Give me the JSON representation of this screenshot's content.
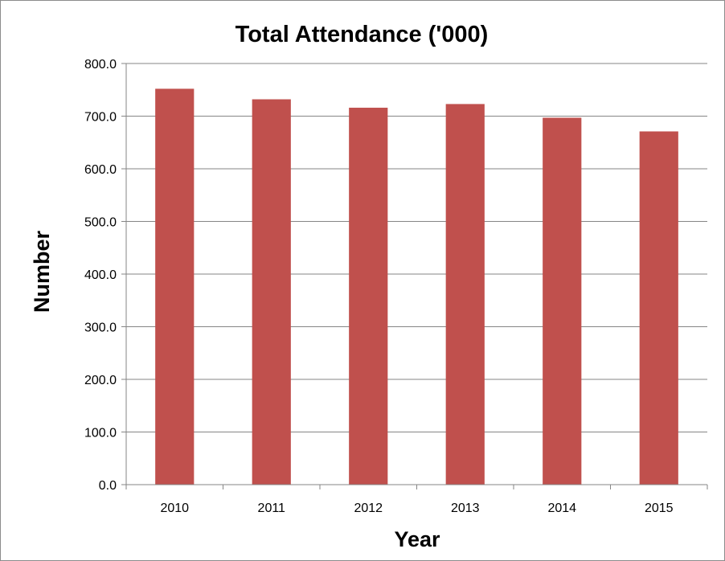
{
  "chart_data": {
    "type": "bar",
    "title": "Total Attendance ('000)",
    "xlabel": "Year",
    "ylabel": "Number",
    "categories": [
      "2010",
      "2011",
      "2012",
      "2013",
      "2014",
      "2015"
    ],
    "values": [
      752,
      732,
      716,
      723,
      697,
      671
    ],
    "ylim": [
      0,
      800
    ],
    "yticks": [
      "0.0",
      "100.0",
      "200.0",
      "300.0",
      "400.0",
      "500.0",
      "600.0",
      "700.0",
      "800.0"
    ],
    "grid": true,
    "legend": "none",
    "bar_color": "#c0504d",
    "grid_color": "#868686"
  }
}
